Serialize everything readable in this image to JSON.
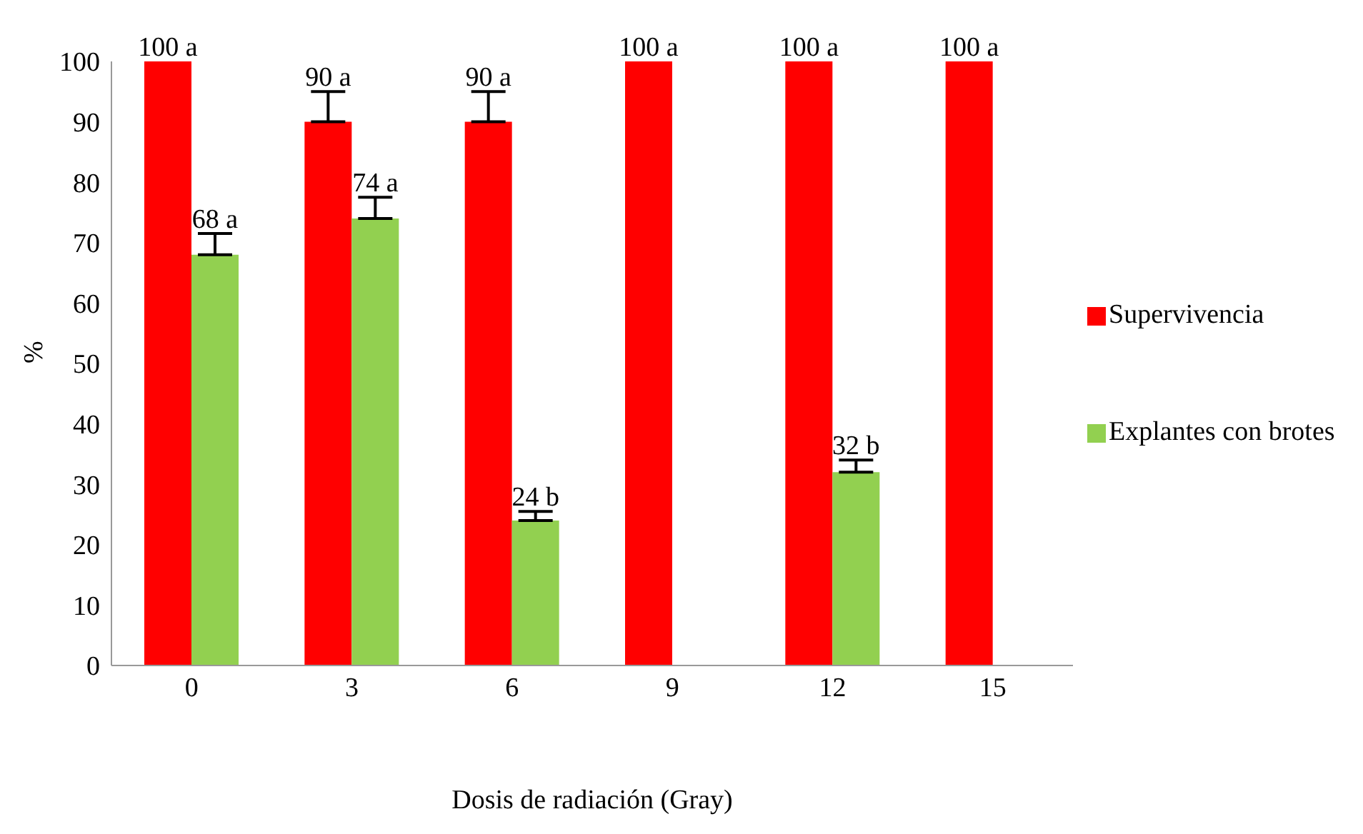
{
  "chart_data": {
    "type": "bar",
    "xlabel": "Dosis de radiación (Gray)",
    "ylabel": "%",
    "categories": [
      "0",
      "3",
      "6",
      "9",
      "12",
      "15"
    ],
    "series": [
      {
        "name": "Supervivencia",
        "color": "#ff0000",
        "values": [
          100,
          90,
          90,
          100,
          100,
          100
        ],
        "errors": [
          null,
          [
            90,
            95
          ],
          [
            90,
            95
          ],
          null,
          null,
          null
        ],
        "value_labels": [
          "100 a",
          "90 a",
          "90 a",
          "100 a",
          "100 a",
          "100 a"
        ]
      },
      {
        "name": "Explantes con brotes",
        "color": "#92d050",
        "values": [
          68,
          74,
          24,
          null,
          32,
          null
        ],
        "errors": [
          [
            68,
            71.5
          ],
          [
            74,
            77.5
          ],
          [
            24,
            25.5
          ],
          null,
          [
            32,
            34
          ],
          null
        ],
        "value_labels": [
          "68 a",
          "74 a",
          "24 b",
          null,
          "32 b",
          null
        ]
      }
    ],
    "ylim": [
      0,
      100
    ],
    "yticks": [
      0,
      10,
      20,
      30,
      40,
      50,
      60,
      70,
      80,
      90,
      100
    ],
    "grid": false,
    "legend": "right"
  }
}
